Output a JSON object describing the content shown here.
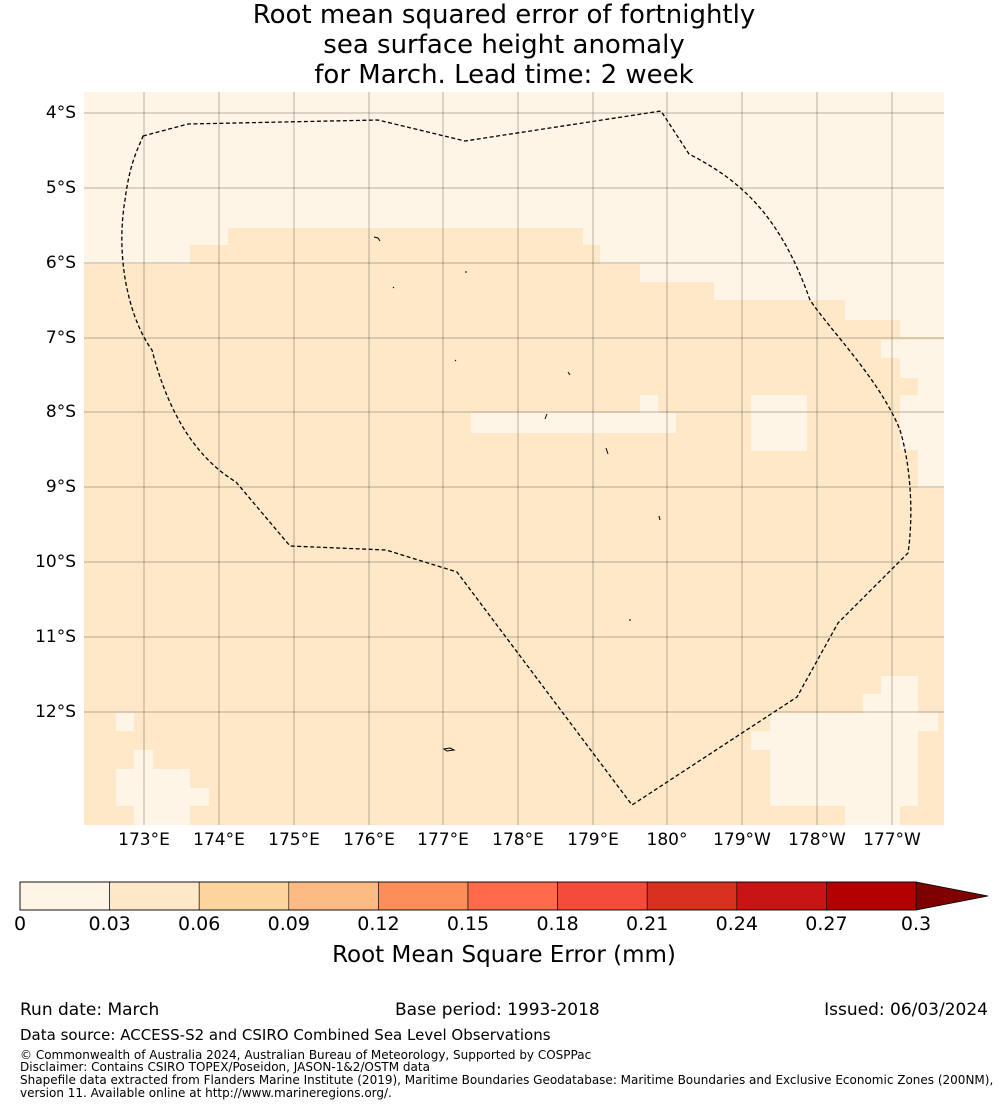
{
  "title": {
    "line1": "Root mean squared error of fortnightly",
    "line2": "sea surface height anomaly",
    "line3": "for March. Lead time: 2 week"
  },
  "map": {
    "lat_labels": [
      "4°S",
      "5°S",
      "6°S",
      "7°S",
      "8°S",
      "9°S",
      "10°S",
      "11°S",
      "12°S"
    ],
    "lon_labels": [
      "173°E",
      "174°E",
      "175°E",
      "176°E",
      "177°E",
      "178°E",
      "179°E",
      "180°",
      "179°W",
      "178°W",
      "177°W"
    ]
  },
  "colorbar": {
    "ticks": [
      "0",
      "0.03",
      "0.06",
      "0.09",
      "0.12",
      "0.15",
      "0.18",
      "0.21",
      "0.24",
      "0.27",
      "0.3"
    ],
    "colors": [
      "#fff5e6",
      "#fee8c8",
      "#fdd49e",
      "#fdbb84",
      "#fc8d59",
      "#fd6b4a",
      "#f44b3b",
      "#d7301f",
      "#c81414",
      "#b30000",
      "#7f0000"
    ],
    "label": "Root Mean Square Error (mm)"
  },
  "footer": {
    "run_date": "Run date: March",
    "base_period": "Base period: 1993-2018",
    "issued": "Issued: 06/03/2024",
    "data_source": "Data source: ACCESS-S2 and CSIRO Combined Sea Level Observations",
    "copyright": "© Commonwealth of Australia 2024, Australian Bureau of Meteorology, Supported by COSPPac",
    "disclaimer": "Disclaimer: Contains CSIRO TOPEX/Poseidon, JASON-1&2/OSTM data",
    "shapefile1": "Shapefile data extracted from Flanders Marine Institute (2019), Maritime Boundaries Geodatabase: Maritime Boundaries and Exclusive Economic Zones (200NM),",
    "shapefile2": "version 11. Available online at http://www.marineregions.org/."
  }
}
